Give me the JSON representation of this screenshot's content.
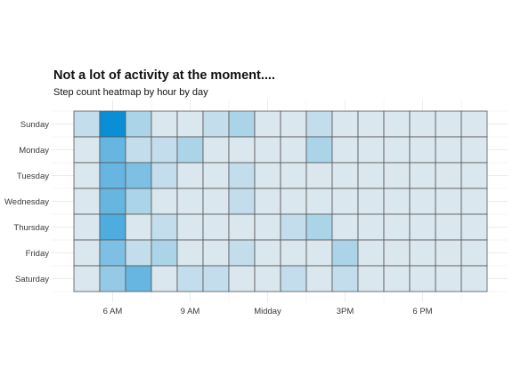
{
  "chart_data": {
    "type": "heatmap",
    "title": "Not a lot of activity at the moment....",
    "subtitle": "Step count heatmap by hour by day",
    "xlabel": "",
    "ylabel": "",
    "hours": [
      5,
      6,
      7,
      8,
      9,
      10,
      11,
      12,
      13,
      14,
      15,
      16,
      17,
      18,
      19,
      20
    ],
    "x_tick_labels": [
      {
        "hour": 6,
        "label": "6 AM"
      },
      {
        "hour": 9,
        "label": "9 AM"
      },
      {
        "hour": 12,
        "label": "Midday"
      },
      {
        "hour": 15,
        "label": "3PM"
      },
      {
        "hour": 18,
        "label": "6 PM"
      }
    ],
    "days": [
      "Sunday",
      "Monday",
      "Tuesday",
      "Wednesday",
      "Thursday",
      "Friday",
      "Saturday"
    ],
    "values": [
      [
        2,
        10,
        3,
        1,
        1,
        2,
        3,
        1,
        1,
        2,
        1,
        1,
        1,
        1,
        1,
        1
      ],
      [
        1,
        6,
        2,
        2,
        3,
        1,
        1,
        1,
        1,
        3,
        1,
        1,
        1,
        1,
        1,
        1
      ],
      [
        1,
        6,
        5,
        2,
        1,
        1,
        2,
        1,
        1,
        1,
        1,
        1,
        1,
        1,
        1,
        1
      ],
      [
        1,
        6,
        3,
        1,
        1,
        1,
        2,
        1,
        1,
        1,
        1,
        1,
        1,
        1,
        1,
        1
      ],
      [
        1,
        7,
        1,
        2,
        1,
        1,
        1,
        1,
        2,
        3,
        1,
        1,
        1,
        1,
        1,
        1
      ],
      [
        1,
        5,
        2,
        3,
        1,
        1,
        2,
        1,
        1,
        1,
        3,
        1,
        1,
        1,
        1,
        1
      ],
      [
        1,
        4,
        6,
        1,
        2,
        2,
        1,
        1,
        2,
        1,
        2,
        1,
        1,
        1,
        1,
        1
      ]
    ],
    "value_range": [
      0,
      10
    ],
    "color_low": "#f1f1f1",
    "color_high": "#0a8fd6",
    "grid": true,
    "legend": "none"
  }
}
